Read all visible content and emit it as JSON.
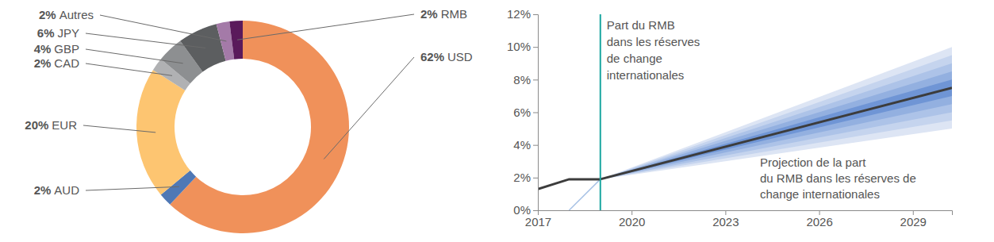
{
  "chart_data": [
    {
      "type": "pie",
      "categories": [
        "USD",
        "AUD",
        "EUR",
        "CAD",
        "GBP",
        "JPY",
        "Autres",
        "RMB"
      ],
      "values": [
        62,
        2,
        20,
        2,
        4,
        6,
        2,
        2
      ],
      "value_labels": [
        "62%",
        "2%",
        "20%",
        "2%",
        "4%",
        "6%",
        "2%",
        "2%"
      ],
      "colors": [
        "#f0915a",
        "#4f78b5",
        "#fdc571",
        "#b0b1b3",
        "#8d8f91",
        "#5c5e60",
        "#a47aa8",
        "#5a1a5b"
      ],
      "data_labels": true
    },
    {
      "type": "line",
      "xlim": [
        2017,
        2030.25
      ],
      "xticks": [
        2017,
        2020,
        2023,
        2026,
        2029
      ],
      "ylim": [
        0,
        12
      ],
      "yticks": [
        {
          "value": 0,
          "label": "0%"
        },
        {
          "value": 2,
          "label": "2%"
        },
        {
          "value": 4,
          "label": "4%"
        },
        {
          "value": 6,
          "label": "6%"
        },
        {
          "value": 8,
          "label": "8%"
        },
        {
          "value": 10,
          "label": "10%"
        },
        {
          "value": 12,
          "label": "12%"
        }
      ],
      "series": [
        {
          "x": [
            2017,
            2018,
            2019
          ],
          "values": [
            1.3,
            1.9,
            1.9
          ],
          "color": "#3c3c3c"
        },
        {
          "x": [
            2019,
            2030.25
          ],
          "values": [
            1.9,
            7.5
          ],
          "color": "#3c3c3c"
        },
        {
          "x": [
            2018,
            2019
          ],
          "values": [
            0,
            1.9
          ],
          "color": "#a9c3e6"
        }
      ],
      "bands": [
        {
          "x": [
            2019,
            2030.25
          ],
          "lower": [
            1.9,
            5
          ],
          "upper": [
            1.9,
            10
          ],
          "color": "#dde5f4"
        },
        {
          "x": [
            2019,
            2030.25
          ],
          "lower": [
            1.9,
            5.5
          ],
          "upper": [
            1.9,
            9.5
          ],
          "color": "#c5d4ee"
        },
        {
          "x": [
            2019,
            2030.25
          ],
          "lower": [
            1.9,
            6
          ],
          "upper": [
            1.9,
            9
          ],
          "color": "#adc3e8"
        },
        {
          "x": [
            2019,
            2030.25
          ],
          "lower": [
            1.9,
            6.5
          ],
          "upper": [
            1.9,
            8.5
          ],
          "color": "#93b0e0"
        },
        {
          "x": [
            2019,
            2030.25
          ],
          "lower": [
            1.9,
            7
          ],
          "upper": [
            1.9,
            8
          ],
          "color": "#6f95d5"
        }
      ],
      "annotations": [
        {
          "x": 2019,
          "text": [
            "Part du RMB",
            "dans les réserves",
            "de change",
            "internationales"
          ],
          "color": "#1aa6a0"
        },
        {
          "text": [
            "Projection de la part",
            "du RMB dans les réserves de",
            "change internationales"
          ]
        }
      ]
    }
  ]
}
